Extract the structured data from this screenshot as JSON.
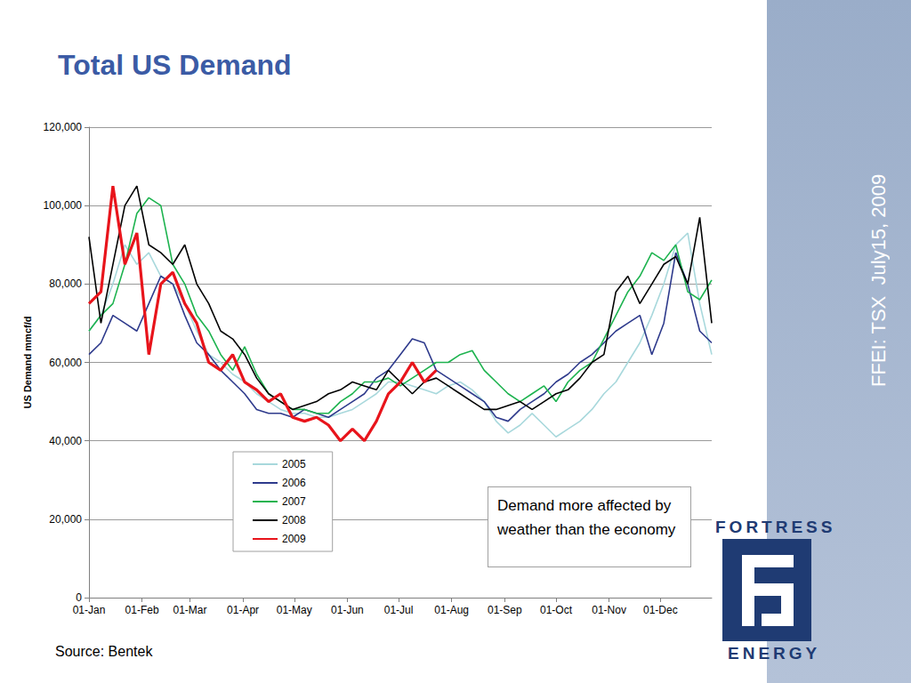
{
  "chart_data": {
    "type": "line",
    "title": "Total US Demand",
    "y_label": "US Demand mmcf/d",
    "annotations": [
      "Demand more affected by weather than the economy"
    ],
    "x": [
      1,
      8,
      15,
      22,
      29,
      36,
      43,
      50,
      57,
      64,
      71,
      78,
      85,
      92,
      99,
      106,
      113,
      120,
      127,
      134,
      141,
      148,
      155,
      162,
      169,
      176,
      183,
      190,
      197,
      204,
      211,
      218,
      225,
      232,
      239,
      246,
      253,
      260,
      267,
      274,
      281,
      288,
      295,
      302,
      309,
      316,
      323,
      330,
      337,
      344,
      351,
      358,
      365
    ],
    "xlim": [
      1,
      365
    ],
    "xticks": [
      {
        "value": 1,
        "label": "01-Jan"
      },
      {
        "value": 32,
        "label": "01-Feb"
      },
      {
        "value": 60,
        "label": "01-Mar"
      },
      {
        "value": 91,
        "label": "01-Apr"
      },
      {
        "value": 121,
        "label": "01-May"
      },
      {
        "value": 152,
        "label": "01-Jun"
      },
      {
        "value": 182,
        "label": "01-Jul"
      },
      {
        "value": 213,
        "label": "01-Aug"
      },
      {
        "value": 244,
        "label": "01-Sep"
      },
      {
        "value": 274,
        "label": "01-Oct"
      },
      {
        "value": 305,
        "label": "01-Nov"
      },
      {
        "value": 335,
        "label": "01-Dec"
      }
    ],
    "ylim": [
      0,
      120000
    ],
    "yticks": [
      0,
      {
        "value": 20000,
        "label": "20,000"
      },
      {
        "value": 40000,
        "label": "40,000"
      },
      {
        "value": 60000,
        "label": "60,000"
      },
      {
        "value": 80000,
        "label": "80,000"
      },
      {
        "value": 100000,
        "label": "100,000"
      },
      {
        "value": 120000,
        "label": "120,000"
      }
    ],
    "grid": true,
    "legend": "bottom",
    "series": [
      {
        "name": "2005",
        "color": "#a8d8dc",
        "values": [
          68000,
          72000,
          80000,
          90000,
          85000,
          88000,
          82000,
          80000,
          75000,
          68000,
          62000,
          60000,
          57000,
          55000,
          52000,
          50000,
          48000,
          47000,
          47000,
          46000,
          46000,
          47000,
          48000,
          50000,
          52000,
          55000,
          55000,
          54000,
          53000,
          52000,
          54000,
          55000,
          53000,
          50000,
          45000,
          42000,
          44000,
          47000,
          44000,
          41000,
          43000,
          45000,
          48000,
          52000,
          55000,
          60000,
          65000,
          72000,
          80000,
          90000,
          93000,
          75000,
          62000
        ]
      },
      {
        "name": "2006",
        "color": "#2e3a8c",
        "values": [
          62000,
          65000,
          72000,
          70000,
          68000,
          75000,
          82000,
          80000,
          72000,
          65000,
          62000,
          58000,
          55000,
          52000,
          48000,
          47000,
          47000,
          46000,
          48000,
          47000,
          46000,
          48000,
          50000,
          52000,
          56000,
          58000,
          62000,
          66000,
          65000,
          58000,
          56000,
          54000,
          52000,
          50000,
          46000,
          45000,
          48000,
          50000,
          52000,
          55000,
          57000,
          60000,
          62000,
          65000,
          68000,
          70000,
          72000,
          62000,
          70000,
          88000,
          80000,
          68000,
          65000
        ]
      },
      {
        "name": "2007",
        "color": "#1db34f",
        "values": [
          68000,
          72000,
          75000,
          85000,
          98000,
          102000,
          100000,
          85000,
          80000,
          72000,
          68000,
          62000,
          58000,
          64000,
          57000,
          52000,
          50000,
          48000,
          48000,
          47000,
          47000,
          50000,
          52000,
          55000,
          55000,
          56000,
          54000,
          56000,
          58000,
          60000,
          60000,
          62000,
          63000,
          58000,
          55000,
          52000,
          50000,
          52000,
          54000,
          50000,
          55000,
          58000,
          60000,
          66000,
          72000,
          78000,
          82000,
          88000,
          86000,
          90000,
          78000,
          76000,
          81000
        ]
      },
      {
        "name": "2008",
        "color": "#000000",
        "values": [
          92000,
          70000,
          85000,
          100000,
          105000,
          90000,
          88000,
          85000,
          90000,
          80000,
          75000,
          68000,
          66000,
          62000,
          56000,
          52000,
          50000,
          48000,
          49000,
          50000,
          52000,
          53000,
          55000,
          54000,
          53000,
          58000,
          55000,
          52000,
          55000,
          56000,
          54000,
          52000,
          50000,
          48000,
          48000,
          49000,
          50000,
          48000,
          50000,
          52000,
          53000,
          56000,
          60000,
          62000,
          78000,
          82000,
          75000,
          80000,
          85000,
          87000,
          80000,
          97000,
          70000
        ]
      },
      {
        "name": "2009",
        "color": "#e8141b",
        "values": [
          75000,
          78000,
          105000,
          85000,
          93000,
          62000,
          80000,
          83000,
          75000,
          70000,
          60000,
          58000,
          62000,
          55000,
          53000,
          50000,
          52000,
          46000,
          45000,
          46000,
          44000,
          40000,
          43000,
          40000,
          45000,
          52000,
          55000,
          60000,
          55000,
          58000,
          null,
          null,
          null,
          null,
          null,
          null,
          null,
          null,
          null,
          null,
          null,
          null,
          null,
          null,
          null,
          null,
          null,
          null,
          null,
          null,
          null,
          null,
          null
        ]
      }
    ]
  },
  "page": {
    "side_text": "FFEI: TSX  July15, 2009",
    "source": "Source: Bentek",
    "logo": [
      "FORTRESS",
      "ENERGY"
    ]
  }
}
